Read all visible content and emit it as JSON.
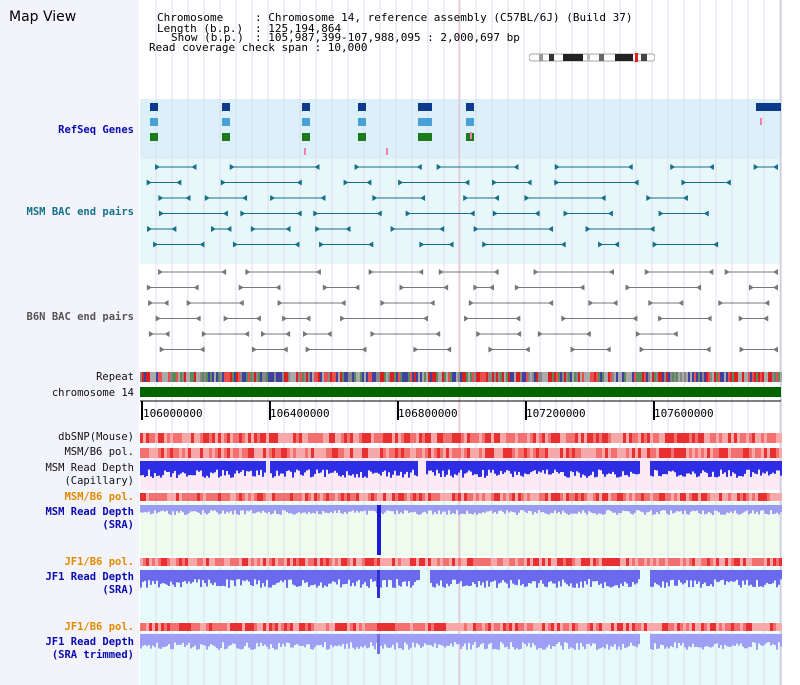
{
  "title": "Map View",
  "header": {
    "chromosome_label": "Chromosome",
    "chromosome_value": ": Chromosome 14, reference assembly (C57BL/6J) (Build 37)",
    "length_label": "Length (b.p.)",
    "length_value": ": 125,194,864",
    "show_label": "Show (b.p.)",
    "show_value": ": 105,987,399-107,988,095 : 2,000,697 bp",
    "coverage_label": "Read coverage check span : 10,000"
  },
  "tracks": {
    "refseq": "RefSeq Genes",
    "msm_bac": "MSM BAC end pairs",
    "b6n_bac": "B6N BAC end pairs",
    "repeat": "Repeat",
    "chromosome": "chromosome 14",
    "dbsnp": "dbSNP(Mouse)",
    "msm_b6_pol_1": "MSM/B6 pol.",
    "msm_read_depth_cap_1": "MSM Read Depth",
    "msm_read_depth_cap_2": "(Capillary)",
    "msm_b6_pol_2": "MSM/B6 pol.",
    "msm_read_depth_sra_1": "MSM Read Depth",
    "msm_read_depth_sra_2": "(SRA)",
    "jf1_b6_pol_1": "JF1/B6 pol.",
    "jf1_read_depth_sra_1": "JF1 Read Depth",
    "jf1_read_depth_sra_2": "(SRA)",
    "jf1_b6_pol_2": "JF1/B6 pol.",
    "jf1_read_depth_trim_1": "JF1 Read Depth",
    "jf1_read_depth_trim_2": "(SRA trimmed)"
  },
  "axis": {
    "ticks": [
      "106000000",
      "106400000",
      "106800000",
      "107200000",
      "107600000"
    ]
  },
  "colors": {
    "refseq_bg": "#dcf0fa",
    "msm_bac_bg": "#e8f8fa",
    "pol_red": "#e83030",
    "depth_blue": "#2020e0",
    "chromosome_green": "#006400",
    "accent_orange": "#e08a00"
  }
}
